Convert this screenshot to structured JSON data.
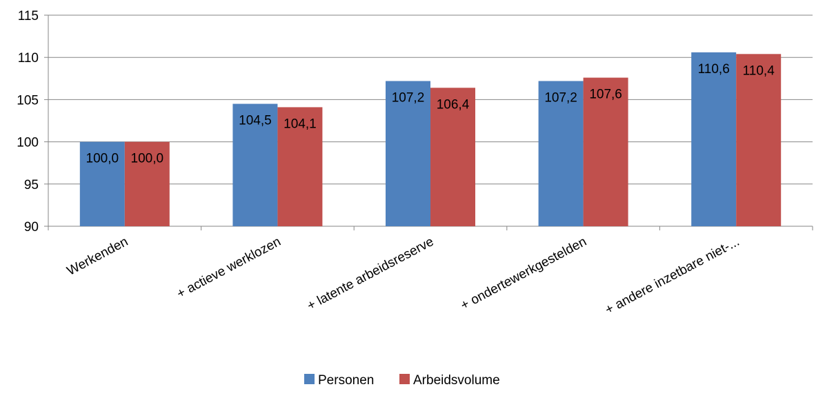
{
  "chart_data": {
    "type": "bar",
    "categories": [
      "Werkenden",
      "+ actieve werklozen",
      "+ latente arbeidsreserve",
      "+ ondertewerkgestelden",
      "+ andere inzetbare niet-..."
    ],
    "series": [
      {
        "name": "Personen",
        "color": "#4F81BD",
        "values": [
          100.0,
          104.5,
          107.2,
          107.2,
          110.6
        ],
        "labels": [
          "100,0",
          "104,5",
          "107,2",
          "107,2",
          "110,6"
        ]
      },
      {
        "name": "Arbeidsvolume",
        "color": "#C0504D",
        "values": [
          100.0,
          104.1,
          106.4,
          107.6,
          110.4
        ],
        "labels": [
          "100,0",
          "104,1",
          "106,4",
          "107,6",
          "110,4"
        ]
      }
    ],
    "ylim": [
      90,
      115
    ],
    "yticks": [
      "90",
      "95",
      "100",
      "105",
      "110",
      "115"
    ],
    "grid": true,
    "legend_position": "bottom"
  }
}
